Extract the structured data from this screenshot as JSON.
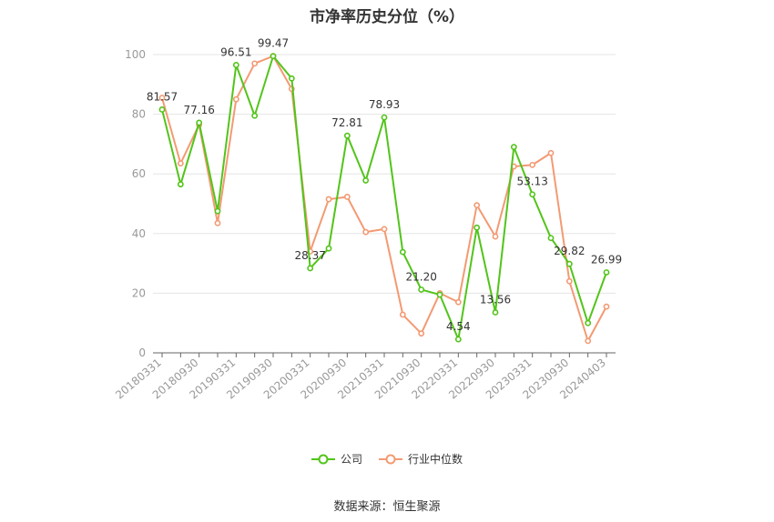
{
  "title": "市净率历史分位（%）",
  "source": "数据来源：恒生聚源",
  "colors": {
    "company": "#52c41a",
    "industry": "#f39a73",
    "axis": "#999999",
    "grid": "#e5e5e5",
    "text": "#333333"
  },
  "chart_data": {
    "type": "line",
    "title": "市净率历史分位（%）",
    "xlabel": "",
    "ylabel": "",
    "ylim": [
      0,
      100
    ],
    "yticks": [
      0,
      20,
      40,
      60,
      80,
      100
    ],
    "grid": true,
    "legend_position": "bottom",
    "x_tick_labels": [
      "20180331",
      "20180930",
      "20190331",
      "20190930",
      "20200331",
      "20200930",
      "20210331",
      "20210930",
      "20220331",
      "20220930",
      "20230331",
      "20230930",
      "20240403"
    ],
    "x": [
      "20180331",
      "20180630",
      "20180930",
      "20181231",
      "20190331",
      "20190630",
      "20190930",
      "20191231",
      "20200331",
      "20200630",
      "20200930",
      "20201231",
      "20210331",
      "20210630",
      "20210930",
      "20211231",
      "20220331",
      "20220630",
      "20220930",
      "20221231",
      "20230331",
      "20230630",
      "20230930",
      "20231231",
      "20240403"
    ],
    "series": [
      {
        "name": "公司",
        "values": [
          81.57,
          56.5,
          77.16,
          47.5,
          96.51,
          79.5,
          99.47,
          92.0,
          28.37,
          35.0,
          72.81,
          57.8,
          78.93,
          33.8,
          21.2,
          19.5,
          4.54,
          42.0,
          13.56,
          69.0,
          53.13,
          38.5,
          29.82,
          10.0,
          26.99
        ],
        "labels": [
          "81.57",
          "",
          "77.16",
          "",
          "96.51",
          "",
          "99.47",
          "",
          "28.37",
          "",
          "72.81",
          "",
          "78.93",
          "",
          "21.20",
          "",
          "4.54",
          "",
          "13.56",
          "",
          "53.13",
          "",
          "29.82",
          "",
          "26.99"
        ]
      },
      {
        "name": "行业中位数",
        "values": [
          85.5,
          63.5,
          76.5,
          43.5,
          85.0,
          97.0,
          99.5,
          88.5,
          34.0,
          51.5,
          52.3,
          40.5,
          41.5,
          12.8,
          6.5,
          20.0,
          17.0,
          49.5,
          39.0,
          62.5,
          63.0,
          67.0,
          24.0,
          4.0,
          15.5
        ]
      }
    ]
  }
}
